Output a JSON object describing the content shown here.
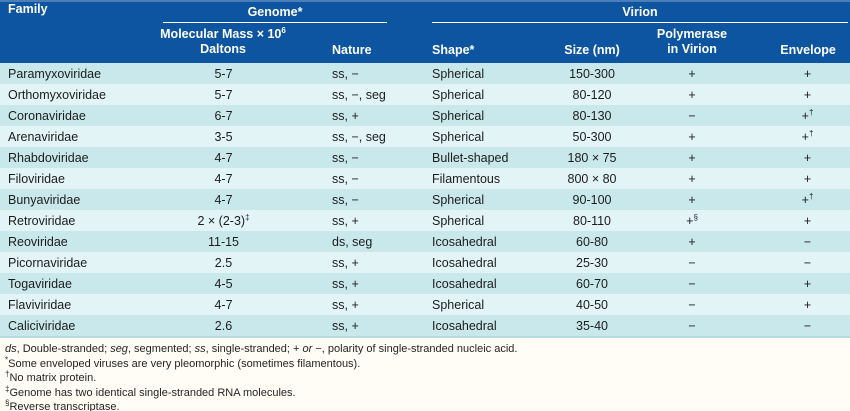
{
  "colors": {
    "header_bg": "#0d55a0",
    "header_top_edge": "#4a7eb8",
    "header_text": "#ffffff",
    "row_stripe_dark": "#c9e8ec",
    "row_stripe_light": "#e3f4f7",
    "body_text": "#1c1c1c",
    "page_bg": "#fffdf6"
  },
  "table": {
    "groups": {
      "genome": "Genome*",
      "virion": "Virion"
    },
    "columns": {
      "family": "Family",
      "mass_line1": "Molecular Mass × 10^6",
      "mass_line2": "Daltons",
      "nature": "Nature",
      "shape": "Shape*",
      "size": "Size (nm)",
      "polymerase_line1": "Polymerase",
      "polymerase_line2": "in Virion",
      "envelope": "Envelope"
    },
    "rows": [
      [
        "Paramyxoviridae",
        "5-7",
        "ss, −",
        "Spherical",
        "150-300",
        "+",
        "+"
      ],
      [
        "Orthomyxoviridae",
        "5-7",
        "ss, −, seg",
        "Spherical",
        "80-120",
        "+",
        "+"
      ],
      [
        "Coronaviridae",
        "6-7",
        "ss, +",
        "Spherical",
        "80-130",
        "−",
        "+^†"
      ],
      [
        "Arenaviridae",
        "3-5",
        "ss, −, seg",
        "Spherical",
        "50-300",
        "+",
        "+^†"
      ],
      [
        "Rhabdoviridae",
        "4-7",
        "ss, −",
        "Bullet-shaped",
        "180 × 75",
        "+",
        "+"
      ],
      [
        "Filoviridae",
        "4-7",
        "ss, −",
        "Filamentous",
        "800 × 80",
        "+",
        "+"
      ],
      [
        "Bunyaviridae",
        "4-7",
        "ss, −",
        "Spherical",
        "90-100",
        "+",
        "+^†"
      ],
      [
        "Retroviridae",
        "2 × (2-3)^‡",
        "ss, +",
        "Spherical",
        "80-110",
        "+^§",
        "+"
      ],
      [
        "Reoviridae",
        "11-15",
        "ds, seg",
        "Icosahedral",
        "60-80",
        "+",
        "−"
      ],
      [
        "Picornaviridae",
        "2.5",
        "ss, +",
        "Icosahedral",
        "25-30",
        "−",
        "−"
      ],
      [
        "Togaviridae",
        "4-5",
        "ss, +",
        "Icosahedral",
        "60-70",
        "−",
        "+"
      ],
      [
        "Flaviviridae",
        "4-7",
        "ss, +",
        "Spherical",
        "40-50",
        "−",
        "+"
      ],
      [
        "Caliciviridae",
        "2.6",
        "ss, +",
        "Icosahedral",
        "35-40",
        "−",
        "−"
      ]
    ]
  },
  "footnotes": {
    "legend": [
      {
        "t": "ds",
        "i": true
      },
      {
        "t": ", Double-stranded; "
      },
      {
        "t": "seg",
        "i": true
      },
      {
        "t": ", segmented; "
      },
      {
        "t": "ss",
        "i": true
      },
      {
        "t": ", single-stranded; + "
      },
      {
        "t": "or",
        "i": true
      },
      {
        "t": " −, polarity of single-stranded nucleic acid."
      }
    ],
    "notes": [
      {
        "marker": "*",
        "text": "Some enveloped viruses are very pleomorphic (sometimes filamentous)."
      },
      {
        "marker": "†",
        "text": "No matrix protein."
      },
      {
        "marker": "‡",
        "text": "Genome has two identical single-stranded RNA molecules."
      },
      {
        "marker": "§",
        "text": "Reverse transcriptase."
      }
    ]
  }
}
